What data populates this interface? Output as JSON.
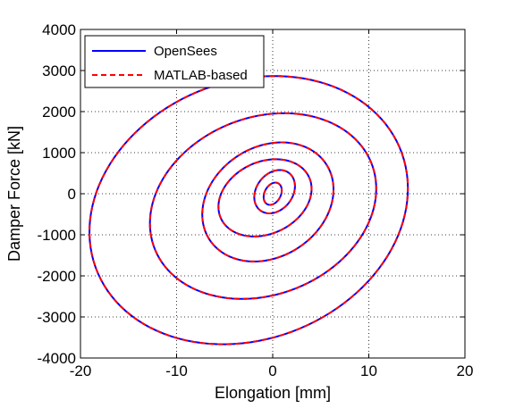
{
  "chart_data": {
    "type": "line",
    "title": "",
    "xlabel": "Elongation [mm]",
    "ylabel": "Damper Force [kN]",
    "xlim": [
      -20,
      20
    ],
    "ylim": [
      -4000,
      4000
    ],
    "xticks": [
      -20,
      -10,
      0,
      10,
      20
    ],
    "yticks": [
      -4000,
      -3000,
      -2000,
      -1000,
      0,
      1000,
      2000,
      3000,
      4000
    ],
    "x_tick_labels": [
      "-20",
      "-10",
      "0",
      "10",
      "20"
    ],
    "y_tick_labels": [
      "-4000",
      "-3000",
      "-2000",
      "-1000",
      "0",
      "1000",
      "2000",
      "3000",
      "4000"
    ],
    "grid": true,
    "legend_position": "top-left",
    "series": [
      {
        "name": "OpenSees",
        "color": "#0000ff",
        "line_style": "solid",
        "loops": [
          {
            "cx": -2.5,
            "cy": -400,
            "a": 16.8,
            "b": 3200,
            "rot": 12.0,
            "phase": 0.2
          },
          {
            "cx": -1.0,
            "cy": -300,
            "a": 12.0,
            "b": 2200,
            "rot": 14.0,
            "phase": 1.1
          },
          {
            "cx": -0.5,
            "cy": -200,
            "a": 7.0,
            "b": 1400,
            "rot": 16.0,
            "phase": 2.3
          },
          {
            "cx": -0.8,
            "cy": -100,
            "a": 5.0,
            "b": 900,
            "rot": 18.0,
            "phase": 0.7
          },
          {
            "cx": 0.2,
            "cy": 50,
            "a": 2.2,
            "b": 500,
            "rot": 20.0,
            "phase": 1.9
          },
          {
            "cx": 0.0,
            "cy": 0,
            "a": 1.0,
            "b": 250,
            "rot": 25.0,
            "phase": 0.4
          }
        ]
      },
      {
        "name": "MATLAB-based",
        "color": "#ff0000",
        "line_style": "dashed",
        "loops": [
          {
            "cx": -2.5,
            "cy": -400,
            "a": 16.8,
            "b": 3200,
            "rot": 12.0,
            "phase": 0.2
          },
          {
            "cx": -1.0,
            "cy": -300,
            "a": 12.0,
            "b": 2200,
            "rot": 14.0,
            "phase": 1.1
          },
          {
            "cx": -0.5,
            "cy": -200,
            "a": 7.0,
            "b": 1400,
            "rot": 16.0,
            "phase": 2.3
          },
          {
            "cx": -0.8,
            "cy": -100,
            "a": 5.0,
            "b": 900,
            "rot": 18.0,
            "phase": 0.7
          },
          {
            "cx": 0.2,
            "cy": 50,
            "a": 2.2,
            "b": 500,
            "rot": 20.0,
            "phase": 1.9
          },
          {
            "cx": 0.0,
            "cy": 0,
            "a": 1.0,
            "b": 250,
            "rot": 25.0,
            "phase": 0.4
          }
        ]
      }
    ]
  }
}
